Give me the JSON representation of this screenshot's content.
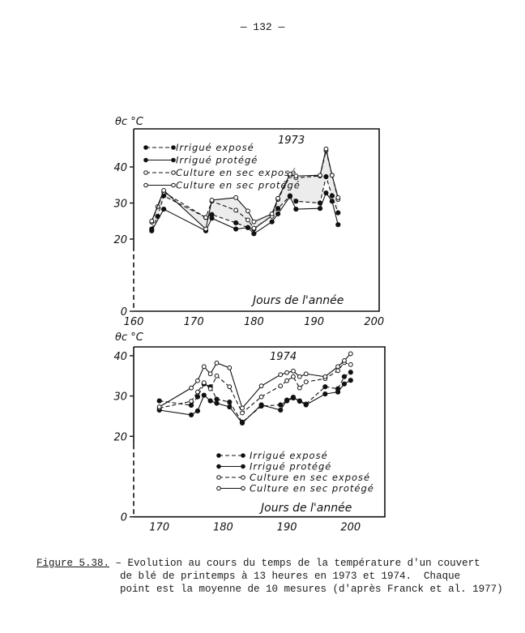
{
  "page_number": "— 132 —",
  "caption": {
    "label": "Figure 5.38.",
    "line1": " – Evolution au cours du temps de la température d'un couvert",
    "line2": "de blé de printemps à 13 heures en 1973 et 1974.  Chaque",
    "line3": "point est la moyenne de 10 mesures (d'après Franck et al. 1977)"
  },
  "chart_data": [
    {
      "type": "line",
      "title": "1973",
      "xlabel": "Jours de l'année",
      "ylabel": "θc °C",
      "xlim": [
        160,
        200
      ],
      "ylim": [
        0,
        45
      ],
      "xticks": [
        160,
        170,
        180,
        190,
        200
      ],
      "yticks": [
        0,
        20,
        30,
        40
      ],
      "legend_position": "top-left",
      "grid": false,
      "series": [
        {
          "name": "Irrigué exposé",
          "marker": "filled",
          "line": "dashed",
          "x": [
            163,
            164,
            165,
            172,
            173,
            177,
            179,
            180,
            183,
            184,
            186,
            187,
            191,
            192,
            193,
            194
          ],
          "y": [
            22.8,
            26.3,
            32,
            26,
            26.8,
            24.5,
            23.2,
            22.8,
            26.5,
            28.5,
            32,
            30.5,
            30,
            37.3,
            32,
            27.3
          ]
        },
        {
          "name": "Irrigué protégé",
          "marker": "filled",
          "line": "solid",
          "x": [
            163,
            165,
            172,
            173,
            177,
            179,
            180,
            183,
            184,
            186,
            187,
            191,
            192,
            193,
            194
          ],
          "y": [
            22.3,
            28.3,
            22.3,
            25.8,
            22.8,
            23.2,
            21.5,
            24.8,
            27,
            31.8,
            28.3,
            28.5,
            32.8,
            30.5,
            24
          ]
        },
        {
          "name": "Culture en sec exposé",
          "marker": "open",
          "line": "dashed",
          "x": [
            163,
            164,
            165,
            172,
            173,
            177,
            179,
            180,
            183,
            184,
            186,
            187,
            191,
            192,
            193,
            194
          ],
          "y": [
            24.7,
            29,
            33,
            26,
            30.5,
            28,
            25.3,
            23,
            26.3,
            31,
            37.5,
            37,
            37.5,
            44.5,
            37.7,
            31
          ]
        },
        {
          "name": "Culture en sec protégé",
          "marker": "open",
          "line": "solid",
          "x": [
            163,
            165,
            172,
            173,
            177,
            179,
            180,
            183,
            184,
            186,
            187,
            191,
            192,
            193,
            194
          ],
          "y": [
            25,
            33.5,
            22.8,
            30.8,
            31.5,
            27.8,
            24.8,
            27,
            31.3,
            38,
            37.5,
            37.7,
            45,
            37.7,
            31.5
          ]
        }
      ]
    },
    {
      "type": "line",
      "title": "1974",
      "xlabel": "Jours de l'année",
      "ylabel": "θc °C",
      "xlim": [
        166,
        205
      ],
      "ylim": [
        0,
        42
      ],
      "xticks": [
        170,
        180,
        190,
        200
      ],
      "yticks": [
        0,
        20,
        30,
        40
      ],
      "legend_position": "bottom-center",
      "grid": false,
      "series": [
        {
          "name": "Irrigué exposé",
          "marker": "filled",
          "line": "dashed",
          "x": [
            170,
            175,
            176,
            177,
            178,
            179,
            181,
            183,
            186,
            189,
            190,
            191,
            192,
            193,
            196,
            198,
            199,
            200
          ],
          "y": [
            28.8,
            27.7,
            29.8,
            33,
            32.3,
            29.2,
            28.5,
            23.5,
            27.5,
            27.8,
            28.8,
            29.5,
            28.8,
            28,
            32.3,
            31.8,
            34.8,
            35.9
          ]
        },
        {
          "name": "Irrigué protégé",
          "marker": "filled",
          "line": "solid",
          "x": [
            170,
            175,
            176,
            177,
            178,
            179,
            181,
            183,
            186,
            189,
            190,
            191,
            192,
            193,
            196,
            198,
            199,
            200
          ],
          "y": [
            26.5,
            25.3,
            26.3,
            30.2,
            28.8,
            28.2,
            27.3,
            23.3,
            27.8,
            26.5,
            29,
            29.7,
            28.7,
            27.8,
            30.5,
            31,
            33,
            33.9
          ]
        },
        {
          "name": "Culture en sec exposé",
          "marker": "open",
          "line": "dashed",
          "x": [
            170,
            175,
            176,
            177,
            178,
            179,
            181,
            183,
            186,
            189,
            190,
            191,
            192,
            193,
            196,
            198,
            199,
            200
          ],
          "y": [
            27,
            28.7,
            31,
            33.3,
            31.8,
            35,
            32.3,
            25.8,
            29.8,
            32.5,
            33.8,
            34.8,
            32,
            33.5,
            34.3,
            36.3,
            38.3,
            37.8
          ]
        },
        {
          "name": "Culture en sec protégé",
          "marker": "open",
          "line": "solid",
          "x": [
            170,
            175,
            176,
            177,
            178,
            179,
            181,
            183,
            186,
            189,
            190,
            191,
            192,
            193,
            196,
            198,
            199,
            200
          ],
          "y": [
            27.3,
            32,
            33.8,
            37.3,
            35.5,
            38.2,
            37,
            27,
            32.5,
            35.3,
            35.8,
            36.2,
            34.8,
            35.5,
            34.8,
            37.3,
            38.8,
            40.5
          ]
        }
      ]
    }
  ]
}
